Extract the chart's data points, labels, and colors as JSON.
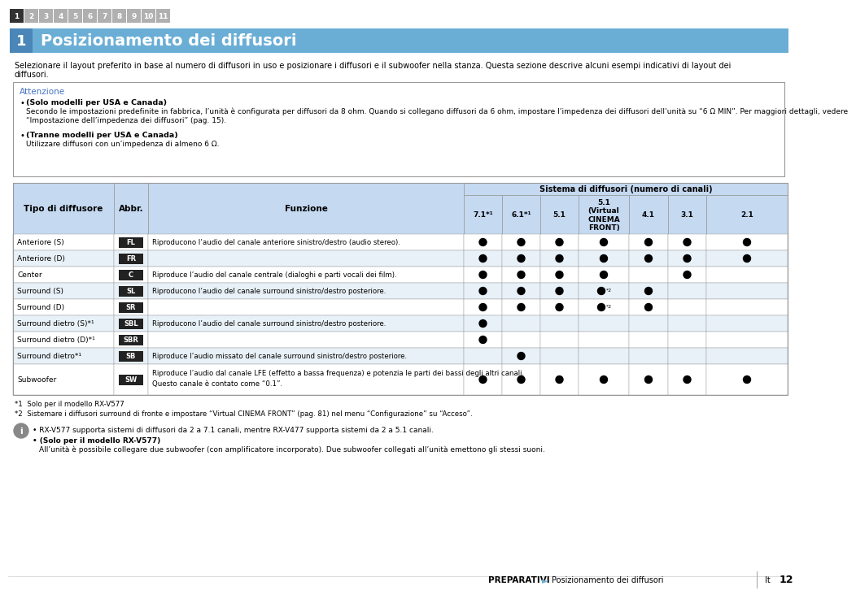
{
  "bg_color": "#ffffff",
  "nav_numbers": [
    "1",
    "2",
    "3",
    "4",
    "5",
    "6",
    "7",
    "8",
    "9",
    "10",
    "11"
  ],
  "nav_active": 0,
  "nav_bg_active": "#333333",
  "nav_bg_inactive": "#b0b0b0",
  "nav_text_color": "#ffffff",
  "section_number": "1",
  "section_title": "Posizionamento dei diffusori",
  "section_bar_color": "#6aaed6",
  "section_num_bg": "#4a86b8",
  "intro_line1": "Selezionare il layout preferito in base al numero di diffusori in uso e posizionare i diffusori e il subwoofer nella stanza. Questa sezione descrive alcuni esempi indicativi di layout dei",
  "intro_line2": "diffusori.",
  "attention_title": "Attenzione",
  "attention_title_color": "#4472c4",
  "attention_box_border": "#999999",
  "attention_box_bg": "#ffffff",
  "attention_bullet1_bold": "(Solo modelli per USA e Canada)",
  "attention_bullet1_text1": "Secondo le impostazioni predefinite in fabbrica, l’unità è configurata per diffusori da 8 ohm. Quando si collegano diffusori da 6 ohm, impostare l’impedenza dei diffusori dell’unità su “6 Ω MIN”. Per maggiori dettagli, vedere",
  "attention_bullet1_text2": "“Impostazione dell’impedenza dei diffusori” (pag. 15).",
  "attention_bullet2_bold": "(Tranne modelli per USA e Canada)",
  "attention_bullet2_text": "Utilizzare diffusori con un’impedenza di almeno 6 Ω.",
  "table_header_bg": "#c5d9f1",
  "table_row_bg": "#ffffff",
  "table_row_alt_bg": "#e8f1f8",
  "table_border_color": "#999999",
  "table_system_header": "Sistema di diffusori (numero di canali)",
  "sub_labels": [
    "7.1*¹",
    "6.1*¹",
    "5.1",
    "5.1\n(Virtual\nCINEMA\nFRONT)",
    "4.1",
    "3.1",
    "2.1"
  ],
  "main_col_labels": [
    "Tipo di diffusore",
    "Abbr.",
    "Funzione"
  ],
  "table_rows": [
    {
      "tipo": "Anteriore (S)",
      "abbr": "FL",
      "funzione": "Riproducono l’audio del canale anteriore sinistro/destro (audio stereo).",
      "dots": [
        1,
        1,
        1,
        1,
        1,
        1,
        1
      ]
    },
    {
      "tipo": "Anteriore (D)",
      "abbr": "FR",
      "funzione": "",
      "dots": [
        1,
        1,
        1,
        1,
        1,
        1,
        1
      ]
    },
    {
      "tipo": "Center",
      "abbr": "C",
      "funzione": "Riproduce l’audio del canale centrale (dialoghi e parti vocali dei film).",
      "dots": [
        1,
        1,
        1,
        1,
        0,
        1,
        0
      ]
    },
    {
      "tipo": "Surround (S)",
      "abbr": "SL",
      "funzione": "Riproducono l’audio del canale surround sinistro/destro posteriore.",
      "dots": [
        1,
        1,
        1,
        "*2",
        1,
        0,
        0
      ]
    },
    {
      "tipo": "Surround (D)",
      "abbr": "SR",
      "funzione": "",
      "dots": [
        1,
        1,
        1,
        "*2",
        1,
        0,
        0
      ]
    },
    {
      "tipo": "Surround dietro (S)*¹",
      "abbr": "SBL",
      "funzione": "Riproducono l’audio del canale surround sinistro/destro posteriore.",
      "dots": [
        1,
        0,
        0,
        0,
        0,
        0,
        0
      ]
    },
    {
      "tipo": "Surround dietro (D)*¹",
      "abbr": "SBR",
      "funzione": "",
      "dots": [
        1,
        0,
        0,
        0,
        0,
        0,
        0
      ]
    },
    {
      "tipo": "Surround dietro*¹",
      "abbr": "SB",
      "funzione": "Riproduce l’audio missato del canale surround sinistro/destro posteriore.",
      "dots": [
        0,
        1,
        0,
        0,
        0,
        0,
        0
      ]
    },
    {
      "tipo": "Subwoofer",
      "abbr": "SW",
      "funzione": "Riproduce l’audio dal canale LFE (effetto a bassa frequenza) e potenzia le parti dei bassi degli altri canali.",
      "funzione2": "Questo canale è contato come “0.1”.",
      "dots": [
        1,
        1,
        1,
        1,
        1,
        1,
        1
      ]
    }
  ],
  "abbr_color": "#333333",
  "footnote1": "*1  Solo per il modello RX-V577",
  "footnote2": "*2  Sistemare i diffusori surround di fronte e impostare “Virtual CINEMA FRONT” (pag. 81) nel menu “Configurazione” su “Acceso”.",
  "tip_text1": "RX-V577 supporta sistemi di diffusori da 2 a 7.1 canali, mentre RX-V477 supporta sistemi da 2 a 5.1 canali.",
  "tip_bold2": "(Solo per il modello RX-V577)",
  "tip_text2": "All’unità è possibile collegare due subwoofer (con amplificatore incorporato). Due subwoofer collegati all’unità emettono gli stessi suoni.",
  "footer_left": "PREPARATIVI",
  "footer_arrow": "►",
  "footer_mid": "Posizionamento dei diffusori",
  "footer_lang": "It",
  "footer_page": "12"
}
